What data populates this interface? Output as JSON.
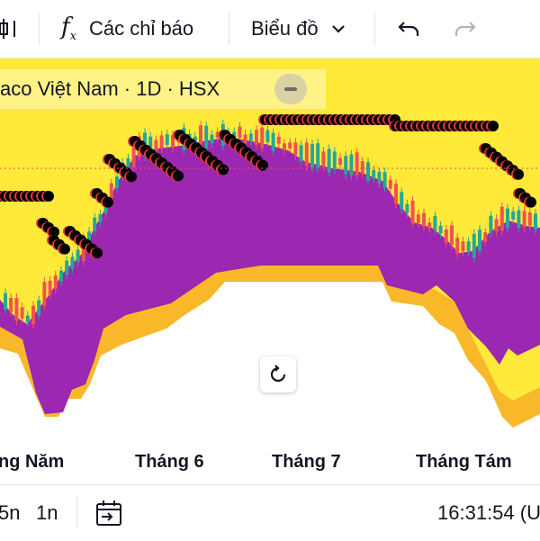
{
  "toolbar": {
    "indicators_label": "Các chỉ báo",
    "chart_type_label": "Biểu đồ",
    "icons": [
      "candles-icon",
      "function-icon",
      "chevron-down-icon",
      "undo-icon",
      "redo-icon"
    ]
  },
  "legend": {
    "symbol_text": "aco Việt Nam · 1D · HSX"
  },
  "xaxis": {
    "labels": [
      "ng Năm",
      "Tháng 6",
      "Tháng 7",
      "Tháng Tám"
    ]
  },
  "bottom_bar": {
    "range_5n": "5n",
    "range_1n": "1n",
    "time": "16:31:54 (U"
  },
  "colors": {
    "background": "#ffea3a",
    "cloud_purple": "#9c27b0",
    "cloud_orange": "#f9b82a",
    "candle_up": "#26a69a",
    "candle_down": "#ef5350",
    "dot": "#000000",
    "dot_shadow": "#e53935"
  },
  "chart_data": {
    "type": "candlestick",
    "x": [
      "ng Năm",
      "Tháng 6",
      "Tháng 7",
      "Tháng Tám"
    ],
    "grid": false
  }
}
